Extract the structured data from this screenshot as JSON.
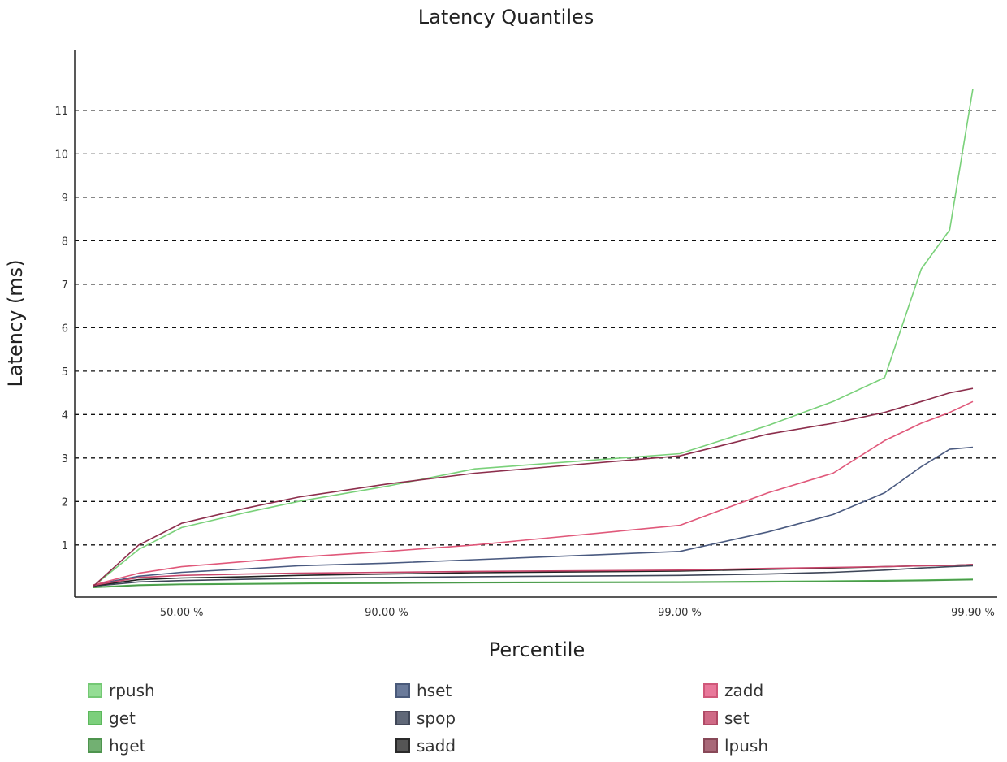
{
  "chart_data": {
    "type": "line",
    "title": "Latency Quantiles",
    "xlabel": "Percentile",
    "ylabel": "Latency (ms)",
    "x_scale": "log-percentile",
    "x_ticks": [
      "50.00 %",
      "90.00 %",
      "99.00 %",
      "99.90 %"
    ],
    "y_ticks": [
      1,
      2,
      3,
      4,
      5,
      6,
      7,
      8,
      9,
      10,
      11
    ],
    "ylim": [
      -0.2,
      12.4
    ],
    "grid": "horizontal-dashed",
    "legend_position": "bottom",
    "x": [
      0,
      30,
      50,
      70,
      80,
      90,
      95,
      99,
      99.5,
      99.7,
      99.8,
      99.85,
      99.88,
      99.9
    ],
    "series": [
      {
        "name": "rpush",
        "color": "#7ad17a",
        "values": [
          0.05,
          0.9,
          1.4,
          1.75,
          2.0,
          2.35,
          2.75,
          3.1,
          3.75,
          4.3,
          4.85,
          7.35,
          8.25,
          11.5
        ]
      },
      {
        "name": "get",
        "color": "#5cbf5c",
        "values": [
          0.03,
          0.08,
          0.1,
          0.11,
          0.12,
          0.13,
          0.14,
          0.15,
          0.16,
          0.17,
          0.18,
          0.19,
          0.2,
          0.21
        ]
      },
      {
        "name": "hget",
        "color": "#4a9a4a",
        "values": [
          0.02,
          0.07,
          0.09,
          0.1,
          0.11,
          0.12,
          0.13,
          0.14,
          0.15,
          0.16,
          0.17,
          0.18,
          0.19,
          0.2
        ]
      },
      {
        "name": "hset",
        "color": "#4a5a80",
        "values": [
          0.08,
          0.28,
          0.37,
          0.45,
          0.52,
          0.58,
          0.66,
          0.85,
          1.3,
          1.7,
          2.2,
          2.8,
          3.2,
          3.25
        ]
      },
      {
        "name": "spop",
        "color": "#3e4658",
        "values": [
          0.05,
          0.15,
          0.18,
          0.21,
          0.23,
          0.25,
          0.27,
          0.3,
          0.33,
          0.37,
          0.42,
          0.47,
          0.5,
          0.52
        ]
      },
      {
        "name": "sadd",
        "color": "#222222",
        "values": [
          0.06,
          0.2,
          0.24,
          0.27,
          0.3,
          0.33,
          0.36,
          0.4,
          0.44,
          0.47,
          0.5,
          0.52,
          0.53,
          0.55
        ]
      },
      {
        "name": "zadd",
        "color": "#e0587a",
        "values": [
          0.08,
          0.35,
          0.5,
          0.62,
          0.72,
          0.85,
          1.0,
          1.45,
          2.2,
          2.65,
          3.4,
          3.8,
          4.05,
          4.3
        ]
      },
      {
        "name": "set",
        "color": "#c7456a",
        "values": [
          0.07,
          0.25,
          0.3,
          0.33,
          0.35,
          0.37,
          0.39,
          0.42,
          0.46,
          0.48,
          0.5,
          0.52,
          0.53,
          0.55
        ]
      },
      {
        "name": "lpush",
        "color": "#8c2e4c",
        "values": [
          0.05,
          1.0,
          1.5,
          1.85,
          2.1,
          2.4,
          2.65,
          3.05,
          3.55,
          3.8,
          4.05,
          4.3,
          4.5,
          4.6
        ]
      }
    ]
  },
  "legend": {
    "items": [
      {
        "label": "rpush",
        "fill": "#94dd94",
        "border": "#74c874"
      },
      {
        "label": "get",
        "fill": "#7ccf7c",
        "border": "#5cb85c"
      },
      {
        "label": "hget",
        "fill": "#72b072",
        "border": "#4e944e"
      },
      {
        "label": "hset",
        "fill": "#6a7a9a",
        "border": "#4a5a7a"
      },
      {
        "label": "spop",
        "fill": "#606878",
        "border": "#404858"
      },
      {
        "label": "sadd",
        "fill": "#555555",
        "border": "#2a2a2a"
      },
      {
        "label": "zadd",
        "fill": "#e8789a",
        "border": "#d0587a"
      },
      {
        "label": "set",
        "fill": "#cf6a86",
        "border": "#b04a66"
      },
      {
        "label": "lpush",
        "fill": "#a86878",
        "border": "#884858"
      }
    ]
  }
}
